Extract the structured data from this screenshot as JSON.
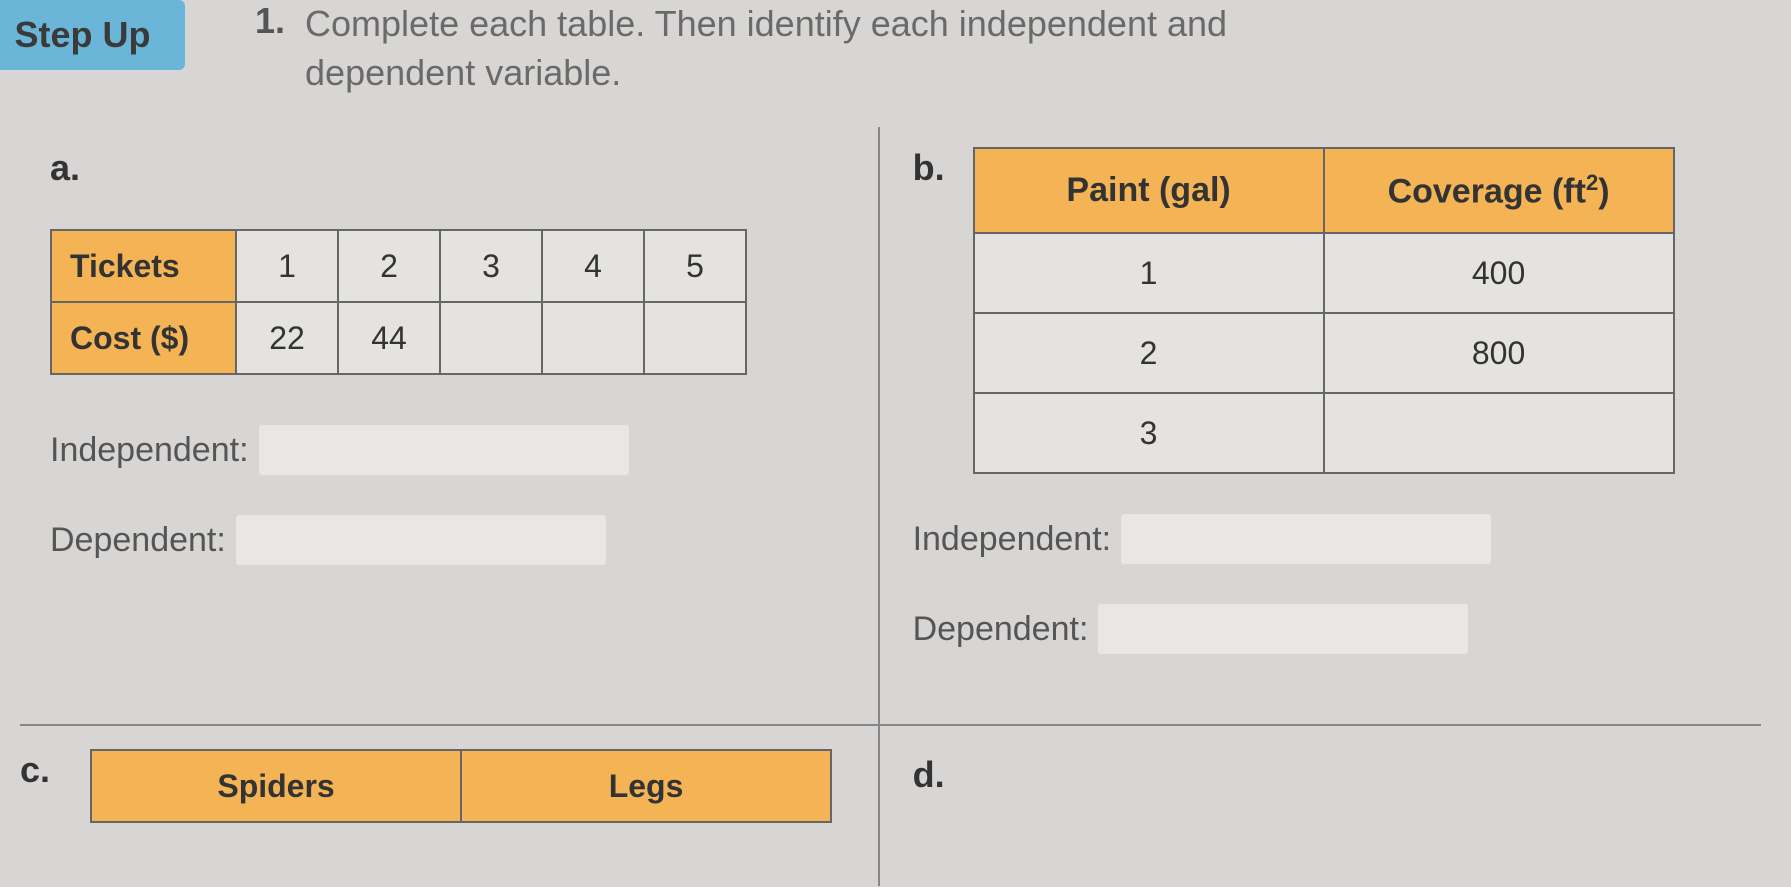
{
  "header": {
    "badge": "Step Up",
    "number": "1.",
    "instruction_line1": "Complete each table. Then identify each independent and",
    "instruction_line2": "dependent variable."
  },
  "problem_a": {
    "label": "a.",
    "row1_header": "Tickets",
    "row1_values": [
      "1",
      "2",
      "3",
      "4",
      "5"
    ],
    "row2_header": "Cost ($)",
    "row2_values": [
      "22",
      "44",
      "",
      "",
      ""
    ],
    "independent_label": "Independent:",
    "dependent_label": "Dependent:"
  },
  "problem_b": {
    "label": "b.",
    "col1_header": "Paint (gal)",
    "col2_header_prefix": "Coverage (ft",
    "col2_header_sup": "2",
    "col2_header_suffix": ")",
    "rows": [
      {
        "c1": "1",
        "c2": "400"
      },
      {
        "c1": "2",
        "c2": "800"
      },
      {
        "c1": "3",
        "c2": ""
      }
    ],
    "independent_label": "Independent:",
    "dependent_label": "Dependent:"
  },
  "problem_c": {
    "label": "c.",
    "col1_header": "Spiders",
    "col2_header": "Legs"
  },
  "problem_d": {
    "label": "d."
  },
  "colors": {
    "badge_bg": "#6bb5d8",
    "table_header_bg": "#f4b456",
    "page_bg": "#d8d6d4",
    "cell_bg": "#e5e3e0",
    "border": "#666666",
    "divider": "#868686",
    "text": "#333333",
    "instruction_text": "#6a6a6a"
  }
}
